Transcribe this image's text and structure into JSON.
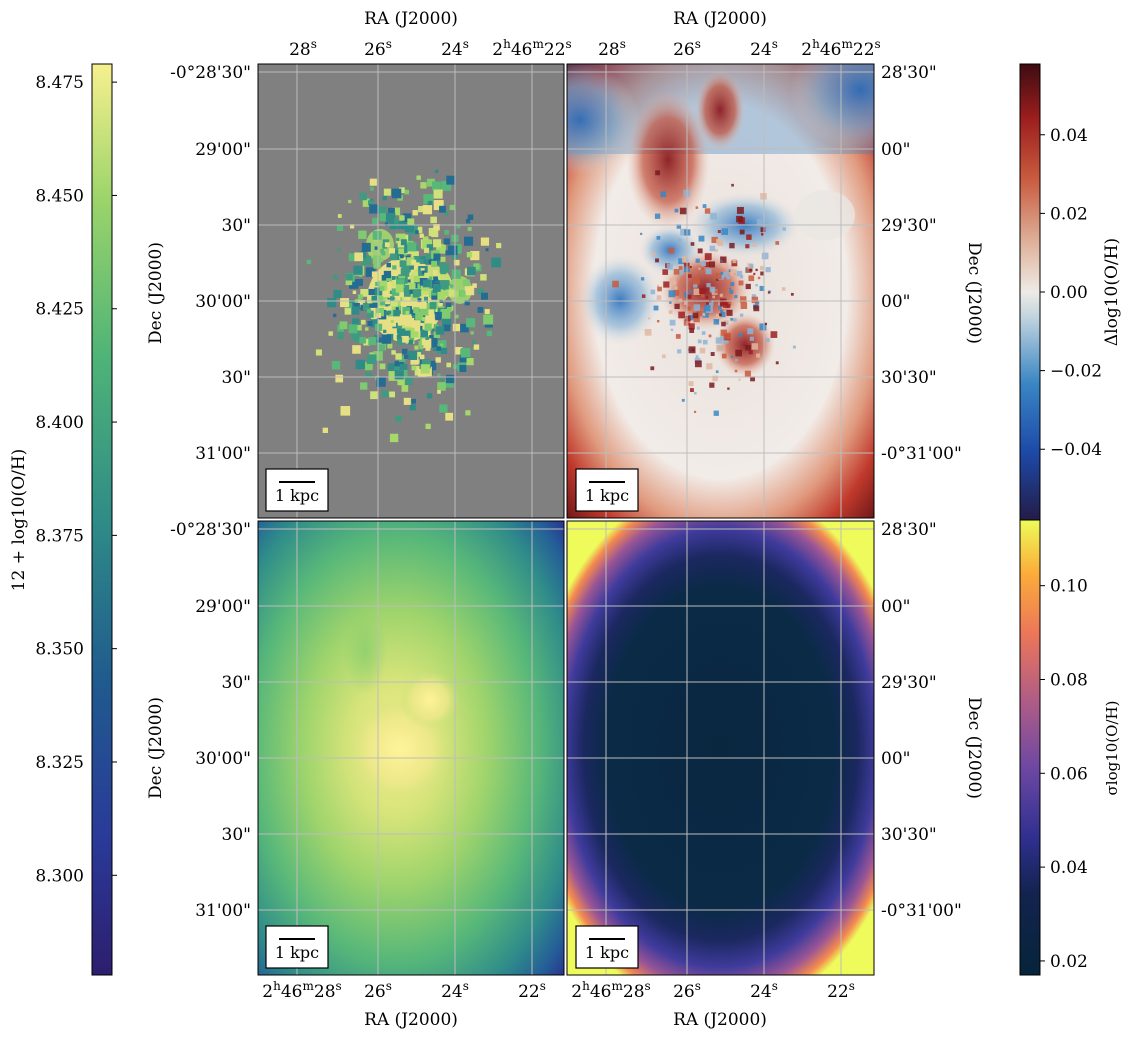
{
  "figure": {
    "colorbars": {
      "left": {
        "label": "12 + log10(O/H)",
        "ticks": [
          "8.475",
          "8.450",
          "8.425",
          "8.400",
          "8.375",
          "8.350",
          "8.325",
          "8.300"
        ],
        "tick_values": [
          8.475,
          8.45,
          8.425,
          8.4,
          8.375,
          8.35,
          8.325,
          8.3
        ],
        "range": [
          8.278,
          8.479
        ],
        "colormap": "summer-viridis"
      },
      "right_top": {
        "label": "Δlog10(O/H)",
        "ticks": [
          "0.04",
          "0.02",
          "0.00",
          "−0.02",
          "−0.04"
        ],
        "tick_values": [
          0.04,
          0.02,
          0.0,
          -0.02,
          -0.04
        ],
        "range": [
          -0.058,
          0.058
        ],
        "colormap": "blue-white-red"
      },
      "right_bottom": {
        "label": "σlog10(O/H)",
        "ticks": [
          "0.10",
          "0.08",
          "0.06",
          "0.04",
          "0.02"
        ],
        "tick_values": [
          0.1,
          0.08,
          0.06,
          0.04,
          0.02
        ],
        "range": [
          0.017,
          0.114
        ],
        "colormap": "thermal"
      }
    },
    "axes": {
      "ra_label": "RA (J2000)",
      "dec_label": "Dec (J2000)",
      "ra_ticks_left_panels": [
        "2h46m28s",
        "26s",
        "24s",
        "22s"
      ],
      "ra_ticks_top": [
        "28s",
        "26s",
        "24s",
        "2h46m22s"
      ],
      "dec_ticks_left": [
        "-0°28'30\"",
        "29'00\"",
        "30\"",
        "30'00\"",
        "30\"",
        "31'00\""
      ],
      "dec_ticks_right": [
        "28'30\"",
        "00\"",
        "29'30\"",
        "00\"",
        "30'30\"",
        "-0°31'00\""
      ],
      "scale_bar": "1 kpc"
    }
  },
  "chart_data": [
    {
      "type": "heatmap",
      "panel": "top-left",
      "title": "",
      "description_values": "12 + log10(O/H) measured in individual pixels over grey background",
      "value_range": [
        8.278,
        8.479
      ],
      "grid": true
    },
    {
      "type": "heatmap",
      "panel": "top-right",
      "title": "",
      "value_range": [
        -0.058,
        0.058
      ],
      "grid": true
    },
    {
      "type": "heatmap",
      "panel": "bottom-left",
      "title": "",
      "value_range": [
        8.278,
        8.479
      ],
      "grid": true
    },
    {
      "type": "heatmap",
      "panel": "bottom-right",
      "title": "",
      "value_range": [
        0.017,
        0.114
      ],
      "grid": true
    }
  ]
}
